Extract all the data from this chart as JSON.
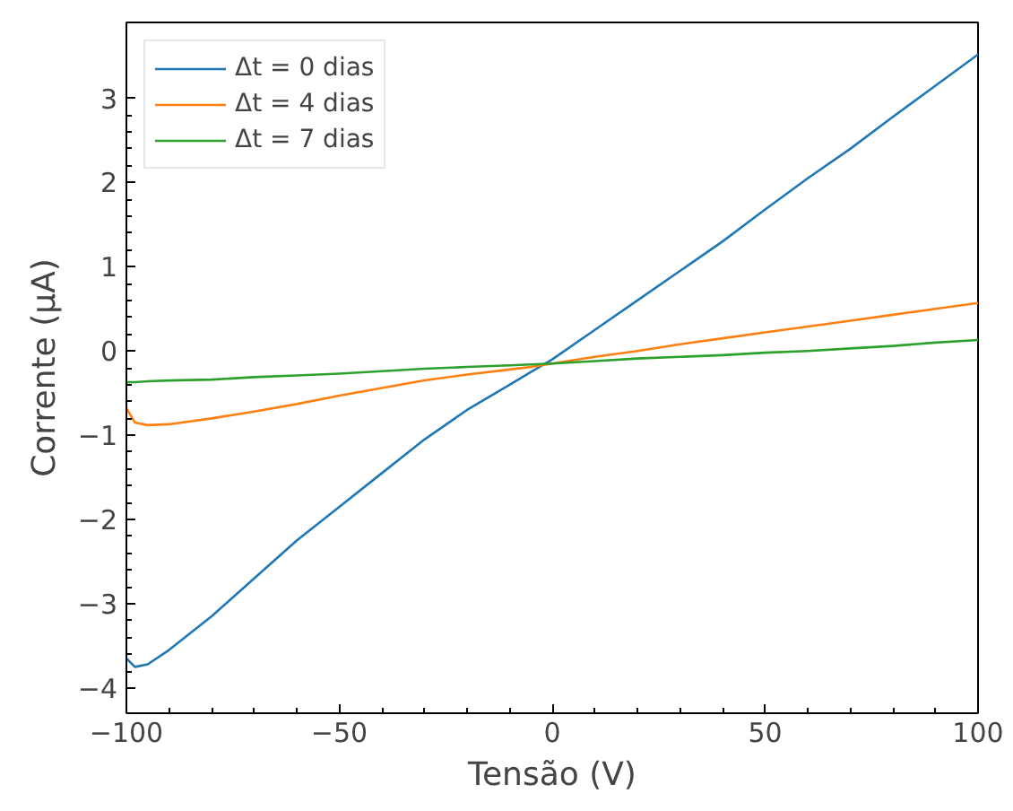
{
  "chart_data": {
    "type": "line",
    "xlabel": "Tensão (V)",
    "ylabel": "Corrente (μA)",
    "xlim": [
      -100,
      100
    ],
    "ylim": [
      -4.3,
      3.9
    ],
    "xticks": [
      -100,
      -50,
      0,
      50,
      100
    ],
    "yticks": [
      -4,
      -3,
      -2,
      -1,
      0,
      1,
      2,
      3
    ],
    "grid": false,
    "legend": "top left",
    "x": [
      -100,
      -98,
      -95,
      -90,
      -80,
      -70,
      -60,
      -50,
      -40,
      -30,
      -20,
      -10,
      -5,
      0,
      10,
      20,
      30,
      40,
      50,
      60,
      70,
      80,
      90,
      100
    ],
    "series": [
      {
        "name": "Δt = 0 dias",
        "color": "#1f77b4",
        "values": [
          -3.65,
          -3.75,
          -3.72,
          -3.55,
          -3.15,
          -2.7,
          -2.25,
          -1.85,
          -1.45,
          -1.05,
          -0.7,
          -0.4,
          -0.25,
          -0.1,
          0.25,
          0.6,
          0.95,
          1.3,
          1.68,
          2.05,
          2.4,
          2.78,
          3.15,
          3.52
        ]
      },
      {
        "name": "Δt = 4 dias",
        "color": "#ff7f0e",
        "values": [
          -0.68,
          -0.85,
          -0.88,
          -0.87,
          -0.8,
          -0.72,
          -0.63,
          -0.53,
          -0.44,
          -0.35,
          -0.28,
          -0.22,
          -0.19,
          -0.15,
          -0.07,
          0.0,
          0.08,
          0.15,
          0.22,
          0.29,
          0.36,
          0.43,
          0.5,
          0.57
        ]
      },
      {
        "name": "Δt = 7 dias",
        "color": "#2ca02c",
        "values": [
          -0.37,
          -0.37,
          -0.36,
          -0.35,
          -0.34,
          -0.31,
          -0.29,
          -0.27,
          -0.24,
          -0.21,
          -0.19,
          -0.17,
          -0.16,
          -0.15,
          -0.12,
          -0.09,
          -0.07,
          -0.05,
          -0.02,
          0.0,
          0.03,
          0.06,
          0.1,
          0.13
        ]
      }
    ]
  }
}
